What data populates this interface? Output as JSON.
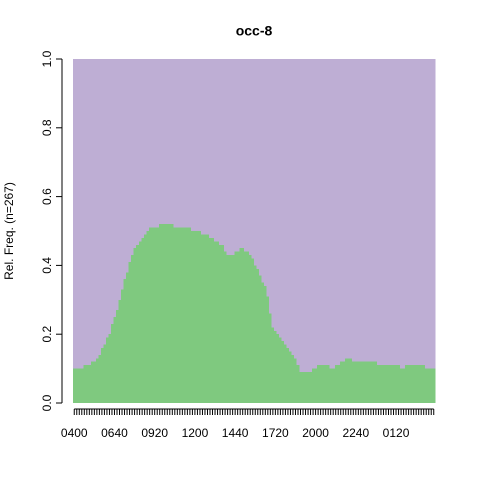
{
  "chart_data": {
    "type": "stacked-bar",
    "title": "occ-8",
    "y_label": "Rel. Freq. (n=267)",
    "categories": [
      "0400",
      null,
      null,
      null,
      null,
      null,
      null,
      null,
      null,
      null,
      null,
      null,
      null,
      null,
      null,
      null,
      "0640",
      null,
      null,
      null,
      null,
      null,
      null,
      null,
      null,
      null,
      null,
      null,
      null,
      null,
      null,
      null,
      "0920",
      null,
      null,
      null,
      null,
      null,
      null,
      null,
      null,
      null,
      null,
      null,
      null,
      null,
      null,
      null,
      "1200",
      null,
      null,
      null,
      null,
      null,
      null,
      null,
      null,
      null,
      null,
      null,
      null,
      null,
      null,
      null,
      "1440",
      null,
      null,
      null,
      null,
      null,
      null,
      null,
      null,
      null,
      null,
      null,
      null,
      null,
      null,
      null,
      "1720",
      null,
      null,
      null,
      null,
      null,
      null,
      null,
      null,
      null,
      null,
      null,
      null,
      null,
      null,
      null,
      "2000",
      null,
      null,
      null,
      null,
      null,
      null,
      null,
      null,
      null,
      null,
      null,
      null,
      null,
      null,
      null,
      "2240",
      null,
      null,
      null,
      null,
      null,
      null,
      null,
      null,
      null,
      null,
      null,
      null,
      null,
      null,
      null,
      "0120",
      null,
      null,
      null,
      null,
      null,
      null,
      null,
      null,
      null,
      null,
      null,
      null,
      null,
      null,
      null
    ],
    "series": [
      {
        "color": "#7fc97f",
        "values": [
          0.1,
          0.1,
          0.1,
          0.1,
          0.11,
          0.11,
          0.11,
          0.12,
          0.12,
          0.13,
          0.14,
          0.16,
          0.17,
          0.19,
          0.2,
          0.23,
          0.25,
          0.27,
          0.3,
          0.33,
          0.36,
          0.38,
          0.41,
          0.43,
          0.45,
          0.46,
          0.47,
          0.48,
          0.49,
          0.5,
          0.51,
          0.51,
          0.51,
          0.51,
          0.52,
          0.52,
          0.52,
          0.52,
          0.52,
          0.52,
          0.51,
          0.51,
          0.51,
          0.51,
          0.51,
          0.51,
          0.51,
          0.5,
          0.5,
          0.5,
          0.5,
          0.49,
          0.49,
          0.49,
          0.48,
          0.48,
          0.47,
          0.47,
          0.46,
          0.46,
          0.44,
          0.43,
          0.43,
          0.43,
          0.44,
          0.44,
          0.45,
          0.45,
          0.44,
          0.44,
          0.43,
          0.42,
          0.4,
          0.39,
          0.37,
          0.35,
          0.34,
          0.31,
          0.26,
          0.22,
          0.21,
          0.2,
          0.19,
          0.18,
          0.17,
          0.16,
          0.15,
          0.14,
          0.13,
          0.11,
          0.09,
          0.09,
          0.09,
          0.09,
          0.09,
          0.1,
          0.1,
          0.11,
          0.11,
          0.11,
          0.11,
          0.11,
          0.1,
          0.1,
          0.11,
          0.11,
          0.12,
          0.12,
          0.13,
          0.13,
          0.13,
          0.12,
          0.12,
          0.12,
          0.12,
          0.12,
          0.12,
          0.12,
          0.12,
          0.12,
          0.12,
          0.11,
          0.11,
          0.11,
          0.11,
          0.11,
          0.11,
          0.11,
          0.11,
          0.11,
          0.1,
          0.1,
          0.11,
          0.11,
          0.11,
          0.11,
          0.11,
          0.11,
          0.11,
          0.11,
          0.1,
          0.1,
          0.1,
          0.1
        ]
      },
      {
        "color": "#beaed4",
        "values": [
          0.9,
          0.9,
          0.9,
          0.9,
          0.89,
          0.89,
          0.89,
          0.88,
          0.88,
          0.87,
          0.86,
          0.84,
          0.83,
          0.81,
          0.8,
          0.77,
          0.75,
          0.73,
          0.7,
          0.67,
          0.64,
          0.62,
          0.59,
          0.57,
          0.55,
          0.54,
          0.53,
          0.52,
          0.51,
          0.5,
          0.49,
          0.49,
          0.49,
          0.49,
          0.48,
          0.48,
          0.48,
          0.48,
          0.48,
          0.48,
          0.49,
          0.49,
          0.49,
          0.49,
          0.49,
          0.49,
          0.49,
          0.5,
          0.5,
          0.5,
          0.5,
          0.51,
          0.51,
          0.51,
          0.52,
          0.52,
          0.53,
          0.53,
          0.54,
          0.54,
          0.56,
          0.57,
          0.57,
          0.57,
          0.56,
          0.56,
          0.55,
          0.55,
          0.56,
          0.56,
          0.57,
          0.58,
          0.6,
          0.61,
          0.63,
          0.65,
          0.66,
          0.69,
          0.74,
          0.78,
          0.79,
          0.8,
          0.81,
          0.82,
          0.83,
          0.84,
          0.85,
          0.86,
          0.87,
          0.89,
          0.91,
          0.91,
          0.91,
          0.91,
          0.91,
          0.9,
          0.9,
          0.89,
          0.89,
          0.89,
          0.89,
          0.89,
          0.9,
          0.9,
          0.89,
          0.89,
          0.88,
          0.88,
          0.87,
          0.87,
          0.87,
          0.88,
          0.88,
          0.88,
          0.88,
          0.88,
          0.88,
          0.88,
          0.88,
          0.88,
          0.88,
          0.89,
          0.89,
          0.89,
          0.89,
          0.89,
          0.89,
          0.89,
          0.89,
          0.89,
          0.9,
          0.9,
          0.89,
          0.89,
          0.89,
          0.89,
          0.89,
          0.89,
          0.89,
          0.89,
          0.9,
          0.9,
          0.9,
          0.9
        ]
      }
    ],
    "ylim": [
      0,
      1
    ],
    "yticks": [
      {
        "value": 0,
        "label": "0.0"
      },
      0.2,
      0.4,
      0.6,
      0.8,
      {
        "value": 1,
        "label": "1.0"
      }
    ]
  }
}
